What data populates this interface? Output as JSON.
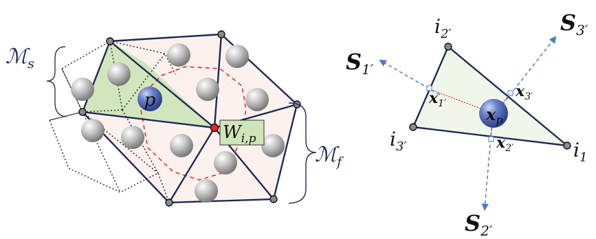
{
  "left_figure": {
    "label_ms": "ℳ",
    "label_ms_sub": "s",
    "label_mf": "ℳ",
    "label_mf_sub": "f",
    "particle_label": "p",
    "weight_label": "W",
    "weight_sub": "i,p"
  },
  "right_figure": {
    "vertex_top": "i",
    "vertex_top_sub": "2′",
    "vertex_left": "i",
    "vertex_left_sub": "3′",
    "vertex_right": "i",
    "vertex_right_sub": "1",
    "s1": "S",
    "s1_sub": "1′",
    "s2": "S",
    "s2_sub": "2′",
    "s3": "S",
    "s3_sub": "3′",
    "x1": "x",
    "x1_sub": "1′",
    "x2": "x",
    "x2_sub": "2′",
    "x3": "x",
    "x3_sub": "3′",
    "xp": "x",
    "xp_sub": "p"
  },
  "colors": {
    "mesh_edge": "#1c2a55",
    "fluid_fill": "#fdf1ee",
    "solid_fill": "#cfe5b9",
    "red_dash": "#e02a2a",
    "blue_arrow": "#4a7cc4",
    "node_fill": "#8a8a8a",
    "weight_box": "#cfe5b9"
  }
}
